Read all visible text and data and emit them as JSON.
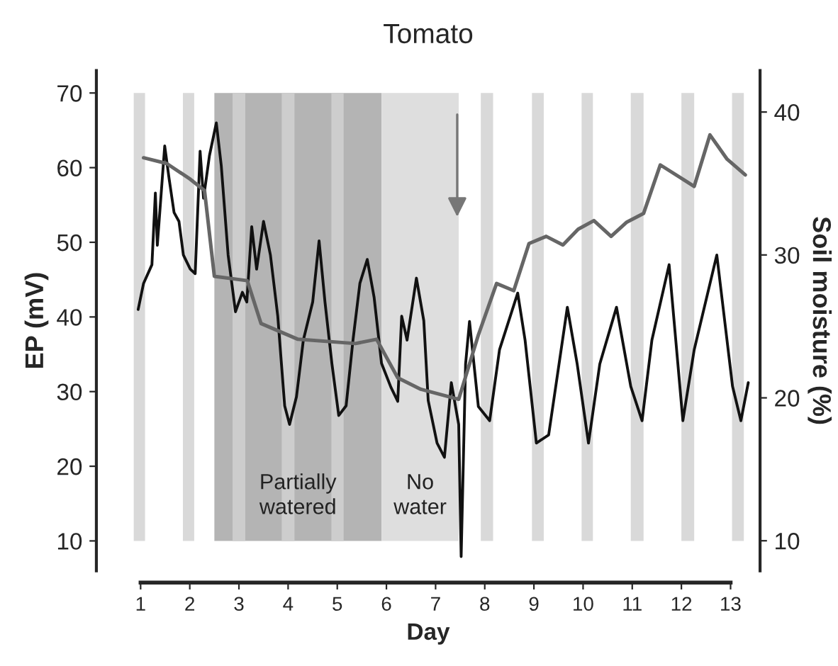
{
  "chart_data": {
    "type": "line",
    "title": "Tomato",
    "xlabel": "Day",
    "ylabel": "EP (mV)",
    "y2label": "Soil moisture (%)",
    "xlim": [
      0.1,
      13.6
    ],
    "xticks": [
      1,
      2,
      3,
      4,
      5,
      6,
      7,
      8,
      9,
      10,
      11,
      12,
      13
    ],
    "ylim": [
      6,
      73
    ],
    "yticks": [
      10,
      20,
      30,
      40,
      50,
      60,
      70
    ],
    "y2lim": [
      7.9,
      42.9
    ],
    "y2ticks": [
      10,
      20,
      30,
      40
    ],
    "grid": false,
    "legend": false,
    "series": [
      {
        "color": "#111111",
        "x": [
          0.95,
          1.06,
          1.23,
          1.3,
          1.34,
          1.49,
          1.58,
          1.68,
          1.78,
          1.87,
          2.01,
          2.11,
          2.21,
          2.28,
          2.4,
          2.54,
          2.64,
          2.78,
          2.93,
          3.07,
          3.16,
          3.26,
          3.36,
          3.5,
          3.64,
          3.79,
          3.93,
          4.03,
          4.17,
          4.31,
          4.5,
          4.63,
          4.75,
          4.89,
          5.03,
          5.18,
          5.32,
          5.46,
          5.61,
          5.75,
          5.9,
          6.09,
          6.23,
          6.31,
          6.42,
          6.61,
          6.76,
          6.85,
          7.03,
          7.18,
          7.32,
          7.47,
          7.52,
          7.61,
          7.69,
          7.87,
          8.1,
          8.3,
          8.67,
          8.82,
          9.05,
          9.3,
          9.68,
          9.88,
          10.11,
          10.34,
          10.68,
          10.97,
          11.2,
          11.4,
          11.75,
          12.03,
          12.26,
          12.72,
          13.04,
          13.21,
          13.36
        ],
        "values": [
          41,
          44.5,
          47,
          56.6,
          49.6,
          62.9,
          58.5,
          54,
          52.8,
          48.3,
          46.4,
          45.8,
          62.2,
          55.9,
          61.6,
          66,
          60.3,
          48.3,
          40.7,
          43.3,
          42,
          52.1,
          46.4,
          52.8,
          48.3,
          40.1,
          28.1,
          25.6,
          29.3,
          36.9,
          42,
          50.2,
          42,
          33.8,
          26.8,
          28.1,
          36.9,
          44.5,
          47.7,
          42.6,
          33.8,
          30.6,
          28.7,
          40.1,
          36.9,
          45.2,
          39.5,
          28.8,
          23.1,
          21.2,
          31.2,
          25.6,
          7.9,
          33.7,
          39.4,
          28,
          26.1,
          35.6,
          43.2,
          36.9,
          23.1,
          24.2,
          41.3,
          33.7,
          23.1,
          33.7,
          41.3,
          30.7,
          26.1,
          36.9,
          47,
          26.1,
          35.6,
          48.3,
          30.7,
          26.1,
          31.2
        ]
      },
      {
        "color": "#666666",
        "axis": "y2",
        "x": [
          1.06,
          1.53,
          2.01,
          2.3,
          2.5,
          3.17,
          3.45,
          4.2,
          5.37,
          5.8,
          6.23,
          6.7,
          7.47,
          7.87,
          8.24,
          8.59,
          8.9,
          9.25,
          9.59,
          9.9,
          10.22,
          10.57,
          10.89,
          11.23,
          11.57,
          12.26,
          12.58,
          12.93,
          13.3
        ],
        "values": [
          36.8,
          36.4,
          35.3,
          34.5,
          28.5,
          28.2,
          25.2,
          24.1,
          23.8,
          24.1,
          21.4,
          20.6,
          19.9,
          24.4,
          28,
          27.5,
          30.8,
          31.3,
          30.7,
          31.8,
          32.4,
          31.3,
          32.3,
          32.9,
          36.3,
          34.8,
          38.4,
          36.7,
          35.6
        ]
      }
    ],
    "bands": [
      {
        "axis": "x",
        "from": 2.5,
        "to": 5.9,
        "label": "Partially\nwatered",
        "color": "#b4b4b4"
      },
      {
        "axis": "x",
        "from": 5.9,
        "to": 7.47,
        "label": "No\nwater",
        "color": "#dedede"
      },
      {
        "axis": "x",
        "from": 0.86,
        "to": 1.09,
        "color": "#d9d9d9"
      },
      {
        "axis": "x",
        "from": 1.86,
        "to": 2.09,
        "color": "#d9d9d9"
      },
      {
        "axis": "x",
        "from": 2.87,
        "to": 3.13,
        "color": "#cdcdcd"
      },
      {
        "axis": "x",
        "from": 3.87,
        "to": 4.13,
        "color": "#cdcdcd"
      },
      {
        "axis": "x",
        "from": 4.88,
        "to": 5.13,
        "color": "#cdcdcd"
      },
      {
        "axis": "x",
        "from": 7.92,
        "to": 8.17,
        "color": "#d9d9d9"
      },
      {
        "axis": "x",
        "from": 8.96,
        "to": 9.2,
        "color": "#d9d9d9"
      },
      {
        "axis": "x",
        "from": 9.97,
        "to": 10.2,
        "color": "#d9d9d9"
      },
      {
        "axis": "x",
        "from": 10.97,
        "to": 11.23,
        "color": "#d9d9d9"
      },
      {
        "axis": "x",
        "from": 12.0,
        "to": 12.26,
        "color": "#d9d9d9"
      },
      {
        "axis": "x",
        "from": 13.03,
        "to": 13.27,
        "color": "#d9d9d9"
      }
    ]
  }
}
